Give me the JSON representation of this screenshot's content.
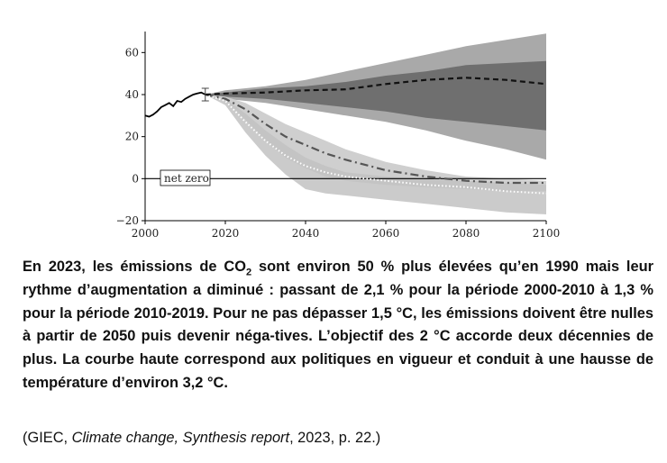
{
  "chart_data": {
    "type": "area",
    "title": "",
    "xlabel": "",
    "ylabel": "",
    "xlim": [
      2000,
      2100
    ],
    "ylim": [
      -20,
      70
    ],
    "x_ticks": [
      2000,
      2020,
      2040,
      2060,
      2080,
      2100
    ],
    "y_ticks": [
      60,
      40,
      20,
      0,
      -20
    ],
    "y_tick_labels": [
      "60",
      "40",
      "20",
      "0",
      "−20"
    ],
    "grid": false,
    "annotation": "net zero",
    "historical": {
      "x": [
        2000,
        2001,
        2002,
        2003,
        2004,
        2005,
        2006,
        2007,
        2008,
        2009,
        2010,
        2011,
        2012,
        2013,
        2014,
        2015
      ],
      "y": [
        30,
        29.5,
        30.5,
        32,
        34,
        35,
        36,
        34.5,
        37,
        36.5,
        38,
        39,
        40,
        40.5,
        41,
        40
      ],
      "error_bar": {
        "x": 2015,
        "low": 37,
        "high": 43
      }
    },
    "series": [
      {
        "style": "dashed",
        "x": [
          2015,
          2020,
          2030,
          2040,
          2050,
          2060,
          2070,
          2080,
          2090,
          2100
        ],
        "y": [
          40,
          40.5,
          41,
          42,
          42.5,
          45,
          47,
          48,
          47,
          45
        ],
        "band_outer": {
          "low": [
            40,
            38,
            36,
            33,
            30,
            27,
            23,
            18,
            14,
            9
          ],
          "high": [
            40,
            42,
            44,
            47,
            51,
            55,
            59,
            63,
            66,
            69
          ]
        },
        "band_inner": {
          "low": [
            40,
            39,
            38,
            36,
            34,
            32,
            29,
            27,
            25,
            23
          ],
          "high": [
            40,
            41,
            43,
            44,
            46,
            49,
            51,
            54,
            55,
            56
          ]
        }
      },
      {
        "style": "dash-dot",
        "x": [
          2015,
          2020,
          2025,
          2030,
          2035,
          2040,
          2045,
          2050,
          2060,
          2070,
          2080,
          2090,
          2100
        ],
        "y": [
          40,
          38,
          33,
          26,
          20,
          16,
          12,
          9,
          4,
          1,
          -1,
          -2,
          -2
        ],
        "band": {
          "low": [
            40,
            37,
            28,
            18,
            10,
            5,
            1,
            -1,
            -3,
            -4,
            -5,
            -6,
            -6
          ],
          "high": [
            40,
            39,
            36,
            31,
            26,
            22,
            18,
            14,
            8,
            4,
            1,
            0,
            -1
          ]
        }
      },
      {
        "style": "dotted",
        "x": [
          2015,
          2020,
          2025,
          2030,
          2035,
          2040,
          2045,
          2050,
          2060,
          2070,
          2080,
          2090,
          2100
        ],
        "y": [
          40,
          37,
          27,
          18,
          11,
          6,
          3,
          1,
          -1,
          -3,
          -4,
          -6,
          -7
        ],
        "band": {
          "low": [
            40,
            35,
            22,
            11,
            2,
            -5,
            -7,
            -8,
            -10,
            -12,
            -14,
            -16,
            -17
          ],
          "high": [
            40,
            38,
            31,
            23,
            16,
            10,
            6,
            3,
            1,
            0,
            -1,
            -2,
            -3
          ]
        }
      }
    ]
  },
  "caption": {
    "part1": "En 2023, les émissions de CO",
    "sub": "2",
    "part2": " sont environ 50 % plus élevées qu’en 1990 mais leur rythme d’augmentation a diminué : passant de 2,1 % pour la période 2000-2010 à 1,3 % pour la période 2010-2019. Pour ne pas dépasser 1,5 °C, les émissions doivent être nulles à partir de 2050 puis devenir néga-tives. L’objectif des 2 °C accorde deux décennies de plus. La courbe haute correspond aux politiques en vigueur et conduit à une hausse de température d’environ 3,2 °C."
  },
  "source": {
    "open": "(GIEC, ",
    "title": "Climate change, Synthesis report",
    "close": ", 2023, p. 22.)"
  },
  "colors": {
    "band_outer_upper": "#a9a9a9",
    "band_inner_upper": "#6f6f6f",
    "band_lower_dashdot": "#cfcfcf",
    "band_lower_dotted": "#c2c2c2",
    "line_historical": "#000000",
    "line_dashed": "#111111",
    "line_dashdot": "#555555",
    "line_dotted": "#ffffff"
  }
}
